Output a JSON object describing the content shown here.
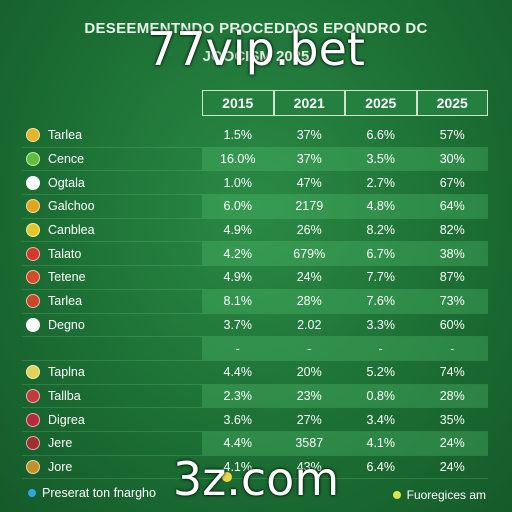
{
  "header": {
    "line1": "DESEEMENTNDO PROCEDDOS EPONDRO DC",
    "line2": "JOOCISM 2025"
  },
  "watermarks": {
    "top": "77vip.bet",
    "bottom": "3z.com"
  },
  "legend": {
    "left": "Preserat ton fnargho",
    "right": "Fuoregices am",
    "left_color": "#2aa8e0",
    "right_color": "#d8e84a"
  },
  "colors": {
    "background": "#1f7a3a",
    "row_highlight": "#4fbe6e",
    "header_border": "#cfe3cf"
  },
  "chart_data": {
    "type": "table",
    "columns": [
      "2015",
      "2021",
      "2025",
      "2025"
    ],
    "rows": [
      {
        "label": "Tarlea",
        "badge": "#e3b52a",
        "values": [
          "1.5%",
          "37%",
          "6.6%",
          "57%"
        ]
      },
      {
        "label": "Cence",
        "badge": "#5fbf3a",
        "values": [
          "16.0%",
          "37%",
          "3.5%",
          "30%"
        ]
      },
      {
        "label": "Ogtala",
        "badge": "#ffffff",
        "values": [
          "1.0%",
          "47%",
          "2.7%",
          "67%"
        ]
      },
      {
        "label": "Galchoo",
        "badge": "#e2a51f",
        "values": [
          "6.0%",
          "2179",
          "4.8%",
          "64%"
        ]
      },
      {
        "label": "Canblea",
        "badge": "#e3c72a",
        "values": [
          "4.9%",
          "26%",
          "8.2%",
          "82%"
        ]
      },
      {
        "label": "Talato",
        "badge": "#d33a2a",
        "values": [
          "4.2%",
          "679%",
          "6.7%",
          "38%"
        ]
      },
      {
        "label": "Tetene",
        "badge": "#d24b2a",
        "values": [
          "4.9%",
          "24%",
          "7.7%",
          "87%"
        ]
      },
      {
        "label": "Tarlea",
        "badge": "#c9462a",
        "values": [
          "8.1%",
          "28%",
          "7.6%",
          "73%"
        ]
      },
      {
        "label": "Degno",
        "badge": "#ffffff",
        "values": [
          "3.7%",
          "2.02",
          "3.3%",
          "60%"
        ]
      },
      {
        "label": "",
        "badge": "",
        "values": [
          "-",
          "-",
          "-",
          "-"
        ]
      },
      {
        "label": "Taplna",
        "badge": "#e3d15a",
        "values": [
          "4.4%",
          "20%",
          "5.2%",
          "74%"
        ]
      },
      {
        "label": "Tallba",
        "badge": "#c23a3a",
        "values": [
          "2.3%",
          "23%",
          "0.8%",
          "28%"
        ]
      },
      {
        "label": "Digrea",
        "badge": "#b82a3a",
        "values": [
          "3.6%",
          "27%",
          "3.4%",
          "35%"
        ]
      },
      {
        "label": "Jere",
        "badge": "#a03030",
        "values": [
          "4.4%",
          "3587",
          "4.1%",
          "24%"
        ]
      },
      {
        "label": "Jore",
        "badge": "#c2912a",
        "values": [
          "4.1%",
          "43%",
          "6.4%",
          "24%"
        ]
      }
    ]
  }
}
